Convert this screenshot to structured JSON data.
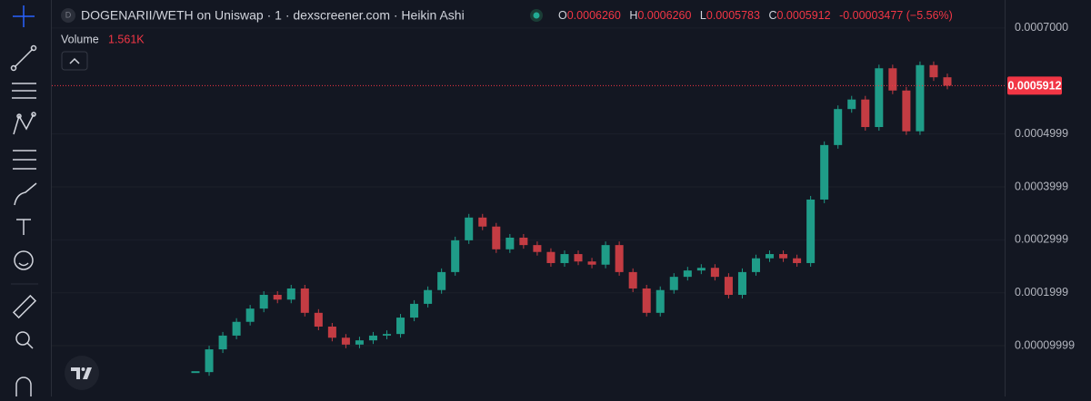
{
  "header": {
    "symbol_badge": "D",
    "title": "DOGENARII/WETH on Uniswap · 1 · dexscreener.com · Heikin Ashi",
    "open_label": "O",
    "open": "0.0006260",
    "high_label": "H",
    "high": "0.0006260",
    "low_label": "L",
    "low": "0.0005783",
    "close_label": "C",
    "close": "0.0005912",
    "change": "-0.00003477 (−5.56%)",
    "volume_label": "Volume",
    "volume": "1.561K"
  },
  "chart_data": {
    "type": "candlestick",
    "values": [
      5e-05,
      9.3e-05,
      0.000119,
      0.000145,
      0.00017,
      0.000196,
      0.000187,
      0.000208,
      0.000162,
      0.000136,
      0.000115,
      0.000102,
      0.00011,
      0.000119,
      0.000122,
      0.000153,
      0.000179,
      0.000205,
      0.000239,
      0.000299,
      0.000342,
      0.000325,
      0.000282,
      0.000304,
      0.00029,
      0.000277,
      0.000256,
      0.000273,
      0.000259,
      0.000253,
      0.00029,
      0.000239,
      0.000208,
      0.000162,
      0.000205,
      0.00023,
      0.000242,
      0.000247,
      0.00023,
      0.000196,
      0.000239,
      0.000265,
      0.000273,
      0.000265,
      0.000256,
      0.000376,
      0.000479,
      0.000547,
      0.000565,
      0.000513,
      0.000624,
      0.000582,
      0.000505,
      0.00063,
      0.000607,
      0.0005912
    ],
    "up_color": "#1f9c88",
    "down_color": "#c43c43",
    "ylim": [
      4e-06,
      0.000753
    ],
    "yticks": [
      {
        "value": 0.0007,
        "label": "0.0007000"
      },
      0.0004999,
      0.0003999,
      0.0002999,
      0.0001999,
      9.999e-05
    ],
    "last_price": {
      "value": 0.0005912,
      "label": "0.0005912"
    },
    "grid": true
  }
}
